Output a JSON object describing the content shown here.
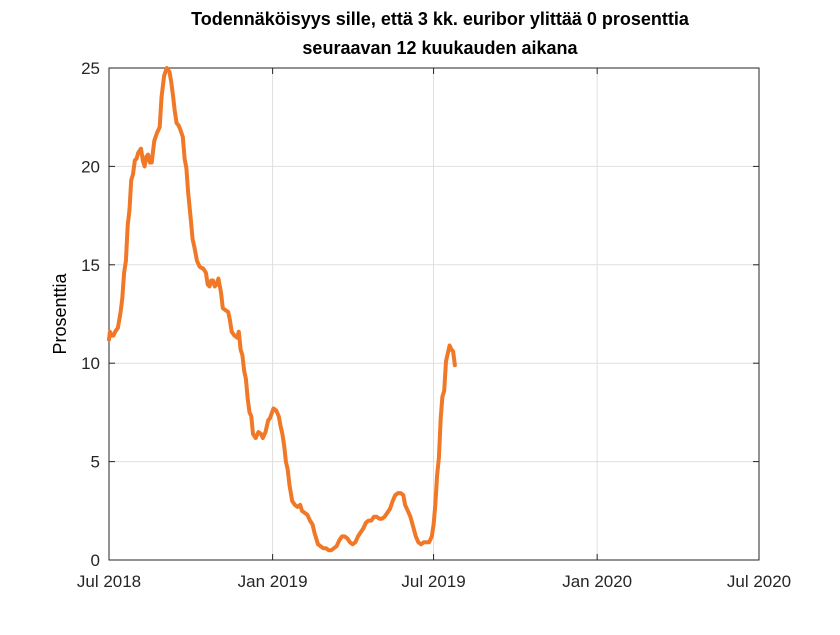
{
  "chart_data": {
    "type": "line",
    "title": [
      "Todennäköisyys sille, että 3 kk. euribor ylittää 0 prosenttia",
      "seuraavan 12 kuukauden aikana"
    ],
    "xlabel": "",
    "ylabel": "Prosenttia",
    "ylim": [
      0,
      25
    ],
    "yticks": [
      0,
      5,
      10,
      15,
      20,
      25
    ],
    "xlim": [
      "2018-07-01",
      "2020-07-01"
    ],
    "xticks": [
      {
        "date": "2018-07-01",
        "label": "Jul 2018"
      },
      {
        "date": "2019-01-01",
        "label": "Jan 2019"
      },
      {
        "date": "2019-07-01",
        "label": "Jul 2019"
      },
      {
        "date": "2020-01-01",
        "label": "Jan 2020"
      },
      {
        "date": "2020-07-01",
        "label": "Jul 2020"
      }
    ],
    "grid": true,
    "color": "#f07826",
    "series": [
      {
        "points": [
          [
            "2018-07-01",
            11.2
          ],
          [
            "2018-07-02",
            11.6
          ],
          [
            "2018-07-04",
            11.4
          ],
          [
            "2018-07-06",
            11.4
          ],
          [
            "2018-07-08",
            11.6
          ],
          [
            "2018-07-11",
            11.8
          ],
          [
            "2018-07-14",
            12.6
          ],
          [
            "2018-07-16",
            13.3
          ],
          [
            "2018-07-18",
            14.6
          ],
          [
            "2018-07-20",
            15.2
          ],
          [
            "2018-07-22",
            17.0
          ],
          [
            "2018-07-24",
            17.8
          ],
          [
            "2018-07-26",
            19.3
          ],
          [
            "2018-07-28",
            19.6
          ],
          [
            "2018-07-30",
            20.3
          ],
          [
            "2018-08-01",
            20.4
          ],
          [
            "2018-08-03",
            20.7
          ],
          [
            "2018-08-06",
            20.9
          ],
          [
            "2018-08-08",
            20.3
          ],
          [
            "2018-08-10",
            20.0
          ],
          [
            "2018-08-12",
            20.5
          ],
          [
            "2018-08-14",
            20.6
          ],
          [
            "2018-08-16",
            20.2
          ],
          [
            "2018-08-18",
            20.2
          ],
          [
            "2018-08-21",
            21.3
          ],
          [
            "2018-08-24",
            21.7
          ],
          [
            "2018-08-27",
            22.0
          ],
          [
            "2018-08-29",
            23.5
          ],
          [
            "2018-09-01",
            24.6
          ],
          [
            "2018-09-04",
            25.0
          ],
          [
            "2018-09-07",
            24.8
          ],
          [
            "2018-09-09",
            24.3
          ],
          [
            "2018-09-11",
            23.6
          ],
          [
            "2018-09-13",
            22.8
          ],
          [
            "2018-09-15",
            22.2
          ],
          [
            "2018-09-17",
            22.1
          ],
          [
            "2018-09-19",
            21.9
          ],
          [
            "2018-09-22",
            21.5
          ],
          [
            "2018-09-24",
            20.4
          ],
          [
            "2018-09-26",
            19.9
          ],
          [
            "2018-09-28",
            18.7
          ],
          [
            "2018-10-01",
            17.3
          ],
          [
            "2018-10-03",
            16.3
          ],
          [
            "2018-10-05",
            15.9
          ],
          [
            "2018-10-08",
            15.2
          ],
          [
            "2018-10-11",
            14.9
          ],
          [
            "2018-10-15",
            14.8
          ],
          [
            "2018-10-18",
            14.6
          ],
          [
            "2018-10-20",
            14.0
          ],
          [
            "2018-10-22",
            13.9
          ],
          [
            "2018-10-24",
            14.2
          ],
          [
            "2018-10-26",
            14.2
          ],
          [
            "2018-10-28",
            13.9
          ],
          [
            "2018-10-30",
            14.0
          ],
          [
            "2018-11-01",
            14.3
          ],
          [
            "2018-11-04",
            13.6
          ],
          [
            "2018-11-06",
            12.8
          ],
          [
            "2018-11-09",
            12.7
          ],
          [
            "2018-11-12",
            12.6
          ],
          [
            "2018-11-14",
            12.2
          ],
          [
            "2018-11-16",
            11.6
          ],
          [
            "2018-11-19",
            11.4
          ],
          [
            "2018-11-22",
            11.3
          ],
          [
            "2018-11-24",
            11.6
          ],
          [
            "2018-11-26",
            10.7
          ],
          [
            "2018-11-28",
            10.4
          ],
          [
            "2018-11-30",
            9.6
          ],
          [
            "2018-12-02",
            9.2
          ],
          [
            "2018-12-04",
            8.2
          ],
          [
            "2018-12-06",
            7.5
          ],
          [
            "2018-12-08",
            7.3
          ],
          [
            "2018-12-10",
            6.4
          ],
          [
            "2018-12-13",
            6.2
          ],
          [
            "2018-12-16",
            6.5
          ],
          [
            "2018-12-19",
            6.4
          ],
          [
            "2018-12-21",
            6.2
          ],
          [
            "2018-12-24",
            6.5
          ],
          [
            "2018-12-27",
            7.1
          ],
          [
            "2018-12-29",
            7.2
          ],
          [
            "2019-01-02",
            7.7
          ],
          [
            "2019-01-05",
            7.6
          ],
          [
            "2019-01-08",
            7.3
          ],
          [
            "2019-01-10",
            6.8
          ],
          [
            "2019-01-12",
            6.4
          ],
          [
            "2019-01-14",
            5.8
          ],
          [
            "2019-01-16",
            5.0
          ],
          [
            "2019-01-18",
            4.6
          ],
          [
            "2019-01-20",
            3.8
          ],
          [
            "2019-01-23",
            3.0
          ],
          [
            "2019-01-26",
            2.8
          ],
          [
            "2019-01-29",
            2.7
          ],
          [
            "2019-02-01",
            2.8
          ],
          [
            "2019-02-03",
            2.5
          ],
          [
            "2019-02-06",
            2.4
          ],
          [
            "2019-02-09",
            2.3
          ],
          [
            "2019-02-12",
            2.0
          ],
          [
            "2019-02-15",
            1.8
          ],
          [
            "2019-02-17",
            1.4
          ],
          [
            "2019-02-19",
            1.1
          ],
          [
            "2019-02-21",
            0.8
          ],
          [
            "2019-02-24",
            0.7
          ],
          [
            "2019-02-27",
            0.6
          ],
          [
            "2019-03-02",
            0.6
          ],
          [
            "2019-03-05",
            0.5
          ],
          [
            "2019-03-08",
            0.5
          ],
          [
            "2019-03-11",
            0.6
          ],
          [
            "2019-03-14",
            0.7
          ],
          [
            "2019-03-17",
            1.0
          ],
          [
            "2019-03-20",
            1.2
          ],
          [
            "2019-03-23",
            1.2
          ],
          [
            "2019-03-26",
            1.1
          ],
          [
            "2019-03-29",
            0.9
          ],
          [
            "2019-04-01",
            0.8
          ],
          [
            "2019-04-04",
            0.9
          ],
          [
            "2019-04-07",
            1.2
          ],
          [
            "2019-04-10",
            1.4
          ],
          [
            "2019-04-13",
            1.6
          ],
          [
            "2019-04-16",
            1.9
          ],
          [
            "2019-04-19",
            2.0
          ],
          [
            "2019-04-22",
            2.0
          ],
          [
            "2019-04-25",
            2.2
          ],
          [
            "2019-04-28",
            2.2
          ],
          [
            "2019-05-01",
            2.1
          ],
          [
            "2019-05-04",
            2.1
          ],
          [
            "2019-05-07",
            2.2
          ],
          [
            "2019-05-10",
            2.4
          ],
          [
            "2019-05-13",
            2.6
          ],
          [
            "2019-05-16",
            3.0
          ],
          [
            "2019-05-19",
            3.3
          ],
          [
            "2019-05-22",
            3.4
          ],
          [
            "2019-05-25",
            3.4
          ],
          [
            "2019-05-28",
            3.3
          ],
          [
            "2019-05-30",
            2.8
          ],
          [
            "2019-06-02",
            2.5
          ],
          [
            "2019-06-05",
            2.2
          ],
          [
            "2019-06-08",
            1.7
          ],
          [
            "2019-06-11",
            1.2
          ],
          [
            "2019-06-14",
            0.9
          ],
          [
            "2019-06-17",
            0.8
          ],
          [
            "2019-06-20",
            0.9
          ],
          [
            "2019-06-23",
            0.9
          ],
          [
            "2019-06-26",
            0.9
          ],
          [
            "2019-06-29",
            1.2
          ],
          [
            "2019-07-01",
            1.8
          ],
          [
            "2019-07-03",
            2.8
          ],
          [
            "2019-07-05",
            4.3
          ],
          [
            "2019-07-07",
            5.2
          ],
          [
            "2019-07-09",
            7.2
          ],
          [
            "2019-07-11",
            8.3
          ],
          [
            "2019-07-13",
            8.6
          ],
          [
            "2019-07-15",
            10.1
          ],
          [
            "2019-07-17",
            10.5
          ],
          [
            "2019-07-19",
            10.9
          ],
          [
            "2019-07-21",
            10.7
          ],
          [
            "2019-07-23",
            10.6
          ],
          [
            "2019-07-25",
            9.9
          ]
        ]
      }
    ]
  }
}
